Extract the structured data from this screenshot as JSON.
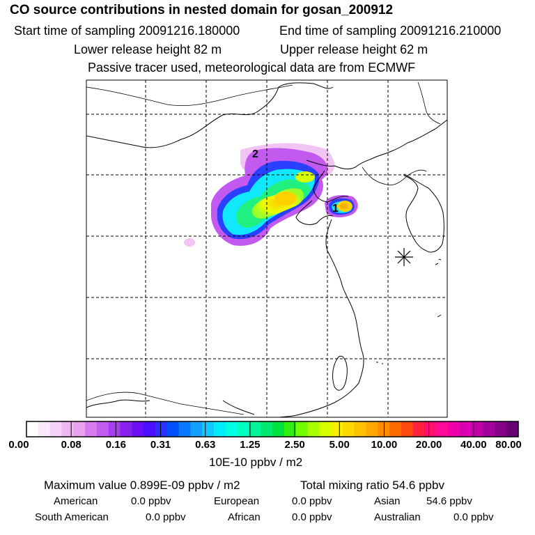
{
  "header": {
    "title": "CO  source contributions in nested domain for gosan_200912",
    "start_label": "Start time of sampling 20091216.180000",
    "end_label": "End time of sampling 20091216.210000",
    "lower_label": "Lower release height   82 m",
    "upper_label": "Upper release height   62 m",
    "note": "Passive tracer used, meteorological data are from ECMWF"
  },
  "map": {
    "markers": [
      "2",
      "1"
    ],
    "station_icon": "asterisk-icon"
  },
  "colorbar": {
    "labels": [
      "0.00",
      "0.08",
      "0.16",
      "0.31",
      "0.63",
      "1.25",
      "2.50",
      "5.00",
      "10.00",
      "20.00",
      "40.00",
      "80.00"
    ],
    "units": "10E-10 ppbv / m2",
    "colors": [
      "#ffffff",
      "#fce8fc",
      "#f6d2f6",
      "#f0b8f2",
      "#e9a0ef",
      "#d77aec",
      "#c35cf0",
      "#a93cf0",
      "#8a20f0",
      "#6a10f4",
      "#4a10ff",
      "#2a30ff",
      "#0050ff",
      "#0a78ff",
      "#14a0ff",
      "#10c8ff",
      "#00ecff",
      "#00ffe4",
      "#00ffc0",
      "#00f59a",
      "#00e870",
      "#00e040",
      "#30f010",
      "#70ff00",
      "#a8ff00",
      "#d8ff00",
      "#f8f000",
      "#ffd800",
      "#ffc000",
      "#ffa800",
      "#ff8c00",
      "#ff6a00",
      "#ff4810",
      "#ff2040",
      "#ff1070",
      "#ff0a96",
      "#f000a8",
      "#d800b0",
      "#c000a8",
      "#a4009c",
      "#86008a",
      "#660070"
    ]
  },
  "footer": {
    "max_value": "Maximum value  0.899E-09 ppbv / m2",
    "total": "Total mixing ratio       54.6 ppbv",
    "american": "American",
    "american_val": "0.0 ppbv",
    "european": "European",
    "european_val": "0.0 ppbv",
    "asian": "Asian",
    "asian_val": "54.6 ppbv",
    "south_american": "South American",
    "south_american_val": "0.0 ppbv",
    "african": "African",
    "african_val": "0.0 ppbv",
    "australian": "Australian",
    "australian_val": "0.0 ppbv"
  }
}
